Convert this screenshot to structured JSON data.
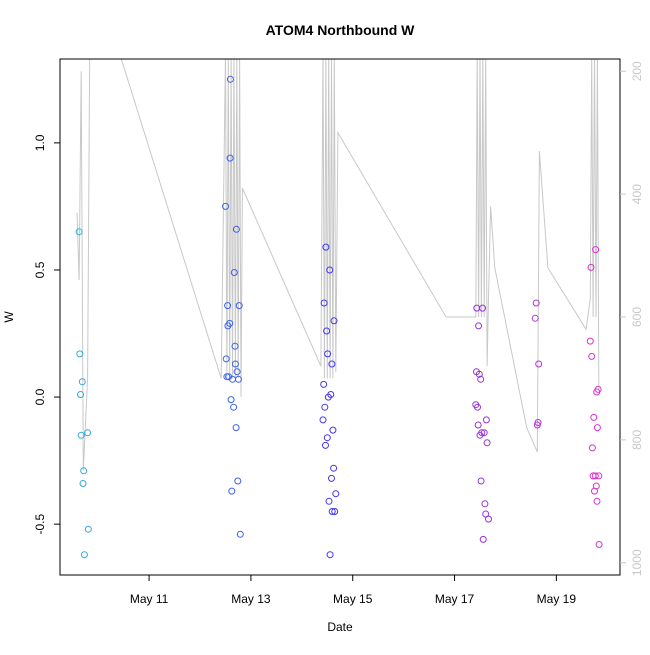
{
  "chart_data": {
    "type": "scatter",
    "title": "ATOM4 Northbound W",
    "xlabel": "Date",
    "ylabel": "W",
    "xlim": [
      "2015-05-09 06:00",
      "2015-05-20 06:00"
    ],
    "ylim": [
      -0.7,
      1.33
    ],
    "y_ticks": [
      -0.5,
      0.0,
      0.5,
      1.0
    ],
    "y_tick_labels": [
      "-0.5",
      "0.0",
      "0.5",
      "1.0"
    ],
    "x_ticks": [
      "2015-05-11",
      "2015-05-13",
      "2015-05-15",
      "2015-05-17",
      "2015-05-19"
    ],
    "x_tick_labels": [
      "May 11",
      "May 13",
      "May 15",
      "May 17",
      "May 19"
    ],
    "y2_lim": [
      1020,
      180
    ],
    "y2_ticks": [
      200,
      400,
      600,
      800,
      1000
    ],
    "y2_tick_labels": [
      "200",
      "400",
      "600",
      "800",
      "1000"
    ],
    "color_start": "#33aadd",
    "color_mid": "#4433ee",
    "color_end": "#dd33cc",
    "line_color": "#c8c8c8",
    "points": [
      {
        "t": "2015-05-09 15:00",
        "w": 0.65
      },
      {
        "t": "2015-05-09 15:20",
        "w": 0.17
      },
      {
        "t": "2015-05-09 15:40",
        "w": 0.01
      },
      {
        "t": "2015-05-09 16:00",
        "w": -0.15
      },
      {
        "t": "2015-05-09 16:30",
        "w": 0.06
      },
      {
        "t": "2015-05-09 16:50",
        "w": -0.34
      },
      {
        "t": "2015-05-09 17:10",
        "w": -0.29
      },
      {
        "t": "2015-05-09 17:30",
        "w": -0.62
      },
      {
        "t": "2015-05-09 19:00",
        "w": -0.14
      },
      {
        "t": "2015-05-09 19:20",
        "w": -0.52
      },
      {
        "t": "2015-05-12 12:00",
        "w": 0.75
      },
      {
        "t": "2015-05-12 12:20",
        "w": 0.15
      },
      {
        "t": "2015-05-12 12:40",
        "w": 0.08
      },
      {
        "t": "2015-05-12 13:00",
        "w": 0.36
      },
      {
        "t": "2015-05-12 13:10",
        "w": 0.28
      },
      {
        "t": "2015-05-12 13:30",
        "w": 0.08
      },
      {
        "t": "2015-05-12 14:00",
        "w": 0.29
      },
      {
        "t": "2015-05-12 14:10",
        "w": 0.94
      },
      {
        "t": "2015-05-12 14:20",
        "w": 1.25
      },
      {
        "t": "2015-05-12 14:40",
        "w": -0.01
      },
      {
        "t": "2015-05-12 15:00",
        "w": -0.37
      },
      {
        "t": "2015-05-12 15:20",
        "w": 0.07
      },
      {
        "t": "2015-05-12 15:50",
        "w": -0.04
      },
      {
        "t": "2015-05-12 16:10",
        "w": 0.49
      },
      {
        "t": "2015-05-12 16:30",
        "w": 0.2
      },
      {
        "t": "2015-05-12 16:40",
        "w": 0.13
      },
      {
        "t": "2015-05-12 17:00",
        "w": -0.12
      },
      {
        "t": "2015-05-12 17:10",
        "w": 0.66
      },
      {
        "t": "2015-05-12 17:30",
        "w": 0.1
      },
      {
        "t": "2015-05-12 17:50",
        "w": -0.33
      },
      {
        "t": "2015-05-12 18:10",
        "w": 0.07
      },
      {
        "t": "2015-05-12 18:30",
        "w": 0.36
      },
      {
        "t": "2015-05-12 19:00",
        "w": -0.54
      },
      {
        "t": "2015-05-14 10:00",
        "w": -0.09
      },
      {
        "t": "2015-05-14 10:20",
        "w": 0.05
      },
      {
        "t": "2015-05-14 10:30",
        "w": 0.37
      },
      {
        "t": "2015-05-14 10:50",
        "w": -0.04
      },
      {
        "t": "2015-05-14 11:10",
        "w": -0.19
      },
      {
        "t": "2015-05-14 11:20",
        "w": 0.59
      },
      {
        "t": "2015-05-14 11:40",
        "w": 0.26
      },
      {
        "t": "2015-05-14 12:00",
        "w": -0.16
      },
      {
        "t": "2015-05-14 12:10",
        "w": 0.17
      },
      {
        "t": "2015-05-14 12:30",
        "w": 0.0
      },
      {
        "t": "2015-05-14 12:50",
        "w": -0.41
      },
      {
        "t": "2015-05-14 13:10",
        "w": 0.5
      },
      {
        "t": "2015-05-14 13:20",
        "w": -0.62
      },
      {
        "t": "2015-05-14 13:40",
        "w": 0.01
      },
      {
        "t": "2015-05-14 14:00",
        "w": -0.32
      },
      {
        "t": "2015-05-14 14:10",
        "w": 0.13
      },
      {
        "t": "2015-05-14 14:20",
        "w": -0.45
      },
      {
        "t": "2015-05-14 14:40",
        "w": -0.13
      },
      {
        "t": "2015-05-14 15:00",
        "w": -0.28
      },
      {
        "t": "2015-05-14 15:10",
        "w": 0.3
      },
      {
        "t": "2015-05-14 15:30",
        "w": -0.45
      },
      {
        "t": "2015-05-14 16:00",
        "w": -0.38
      },
      {
        "t": "2015-05-17 10:00",
        "w": -0.03
      },
      {
        "t": "2015-05-17 10:20",
        "w": 0.1
      },
      {
        "t": "2015-05-17 10:30",
        "w": 0.35
      },
      {
        "t": "2015-05-17 10:50",
        "w": -0.04
      },
      {
        "t": "2015-05-17 11:10",
        "w": -0.11
      },
      {
        "t": "2015-05-17 11:20",
        "w": 0.28
      },
      {
        "t": "2015-05-17 11:40",
        "w": 0.09
      },
      {
        "t": "2015-05-17 12:00",
        "w": -0.15
      },
      {
        "t": "2015-05-17 12:20",
        "w": 0.07
      },
      {
        "t": "2015-05-17 12:30",
        "w": -0.33
      },
      {
        "t": "2015-05-17 12:50",
        "w": -0.14
      },
      {
        "t": "2015-05-17 13:10",
        "w": 0.35
      },
      {
        "t": "2015-05-17 13:30",
        "w": -0.56
      },
      {
        "t": "2015-05-17 14:00",
        "w": -0.14
      },
      {
        "t": "2015-05-17 14:20",
        "w": -0.42
      },
      {
        "t": "2015-05-17 14:40",
        "w": -0.46
      },
      {
        "t": "2015-05-17 15:00",
        "w": -0.09
      },
      {
        "t": "2015-05-17 15:20",
        "w": -0.18
      },
      {
        "t": "2015-05-17 16:00",
        "w": -0.48
      },
      {
        "t": "2015-05-18 14:00",
        "w": 0.31
      },
      {
        "t": "2015-05-18 14:30",
        "w": 0.37
      },
      {
        "t": "2015-05-18 15:00",
        "w": -0.11
      },
      {
        "t": "2015-05-18 15:20",
        "w": -0.1
      },
      {
        "t": "2015-05-18 15:40",
        "w": 0.13
      },
      {
        "t": "2015-05-19 16:00",
        "w": 0.22
      },
      {
        "t": "2015-05-19 16:20",
        "w": 0.51
      },
      {
        "t": "2015-05-19 16:40",
        "w": 0.16
      },
      {
        "t": "2015-05-19 17:00",
        "w": -0.2
      },
      {
        "t": "2015-05-19 17:20",
        "w": -0.31
      },
      {
        "t": "2015-05-19 17:40",
        "w": -0.08
      },
      {
        "t": "2015-05-19 18:00",
        "w": -0.37
      },
      {
        "t": "2015-05-19 18:20",
        "w": -0.31
      },
      {
        "t": "2015-05-19 18:30",
        "w": 0.58
      },
      {
        "t": "2015-05-19 18:50",
        "w": -0.35
      },
      {
        "t": "2015-05-19 19:00",
        "w": 0.02
      },
      {
        "t": "2015-05-19 19:10",
        "w": -0.41
      },
      {
        "t": "2015-05-19 19:20",
        "w": -0.12
      },
      {
        "t": "2015-05-19 19:40",
        "w": 0.03
      },
      {
        "t": "2015-05-19 20:00",
        "w": -0.31
      },
      {
        "t": "2015-05-19 20:10",
        "w": -0.58
      }
    ],
    "depth_line": [
      {
        "t": "2015-05-09 14:00",
        "d": 430
      },
      {
        "t": "2015-05-09 15:00",
        "d": 540
      },
      {
        "t": "2015-05-09 16:00",
        "d": 200
      },
      {
        "t": "2015-05-09 17:00",
        "d": 850
      },
      {
        "t": "2015-05-09 19:00",
        "d": 700
      },
      {
        "t": "2015-05-09 20:00",
        "d": 170
      },
      {
        "t": "2015-05-10 10:00",
        "d": 170
      },
      {
        "t": "2015-05-12 10:00",
        "d": 700
      },
      {
        "t": "2015-05-12 12:00",
        "d": 170
      },
      {
        "t": "2015-05-12 12:40",
        "d": 700
      },
      {
        "t": "2015-05-12 13:20",
        "d": 170
      },
      {
        "t": "2015-05-12 14:00",
        "d": 700
      },
      {
        "t": "2015-05-12 14:40",
        "d": 170
      },
      {
        "t": "2015-05-12 15:20",
        "d": 700
      },
      {
        "t": "2015-05-12 16:00",
        "d": 170
      },
      {
        "t": "2015-05-12 16:40",
        "d": 700
      },
      {
        "t": "2015-05-12 17:20",
        "d": 170
      },
      {
        "t": "2015-05-12 18:00",
        "d": 700
      },
      {
        "t": "2015-05-12 18:40",
        "d": 170
      },
      {
        "t": "2015-05-12 19:20",
        "d": 730
      },
      {
        "t": "2015-05-12 20:00",
        "d": 390
      },
      {
        "t": "2015-05-14 09:00",
        "d": 680
      },
      {
        "t": "2015-05-14 10:00",
        "d": 170
      },
      {
        "t": "2015-05-14 10:40",
        "d": 700
      },
      {
        "t": "2015-05-14 11:20",
        "d": 170
      },
      {
        "t": "2015-05-14 12:00",
        "d": 700
      },
      {
        "t": "2015-05-14 12:40",
        "d": 170
      },
      {
        "t": "2015-05-14 13:20",
        "d": 700
      },
      {
        "t": "2015-05-14 14:00",
        "d": 170
      },
      {
        "t": "2015-05-14 14:40",
        "d": 700
      },
      {
        "t": "2015-05-14 15:20",
        "d": 170
      },
      {
        "t": "2015-05-14 16:00",
        "d": 690
      },
      {
        "t": "2015-05-14 17:00",
        "d": 300
      },
      {
        "t": "2015-05-16 20:00",
        "d": 600
      },
      {
        "t": "2015-05-17 10:00",
        "d": 600
      },
      {
        "t": "2015-05-17 10:40",
        "d": 170
      },
      {
        "t": "2015-05-17 11:20",
        "d": 600
      },
      {
        "t": "2015-05-17 12:00",
        "d": 170
      },
      {
        "t": "2015-05-17 12:40",
        "d": 600
      },
      {
        "t": "2015-05-17 13:20",
        "d": 170
      },
      {
        "t": "2015-05-17 14:00",
        "d": 600
      },
      {
        "t": "2015-05-17 14:40",
        "d": 170
      },
      {
        "t": "2015-05-17 15:20",
        "d": 680
      },
      {
        "t": "2015-05-17 16:00",
        "d": 570
      },
      {
        "t": "2015-05-17 17:00",
        "d": 420
      },
      {
        "t": "2015-05-17 19:00",
        "d": 520
      },
      {
        "t": "2015-05-18 10:00",
        "d": 780
      },
      {
        "t": "2015-05-18 15:00",
        "d": 820
      },
      {
        "t": "2015-05-18 16:00",
        "d": 330
      },
      {
        "t": "2015-05-18 20:00",
        "d": 520
      },
      {
        "t": "2015-05-19 14:00",
        "d": 620
      },
      {
        "t": "2015-05-19 16:00",
        "d": 570
      },
      {
        "t": "2015-05-19 16:40",
        "d": 170
      },
      {
        "t": "2015-05-19 17:20",
        "d": 600
      },
      {
        "t": "2015-05-19 18:00",
        "d": 170
      },
      {
        "t": "2015-05-19 18:40",
        "d": 600
      },
      {
        "t": "2015-05-19 19:20",
        "d": 170
      },
      {
        "t": "2015-05-19 20:00",
        "d": 720
      }
    ]
  }
}
